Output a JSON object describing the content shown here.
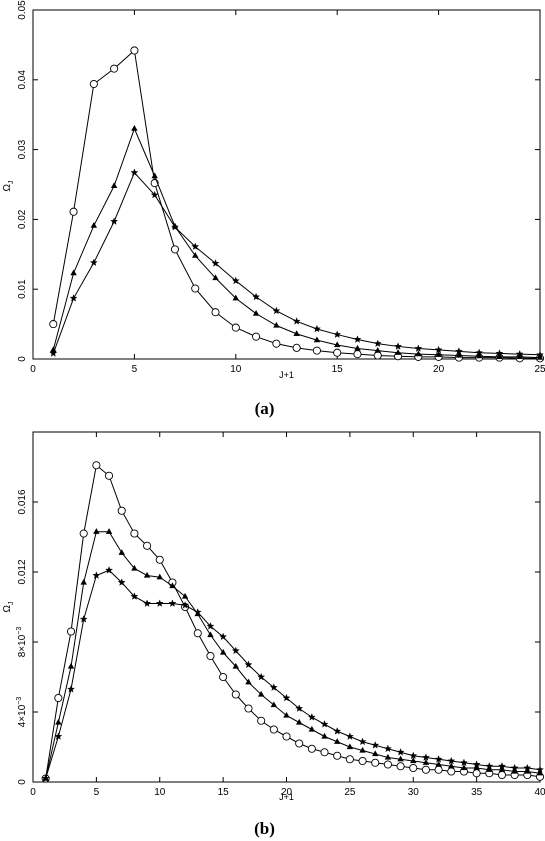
{
  "chart_data": [
    {
      "type": "line",
      "panel_label": "(a)",
      "xlabel": "J+1",
      "ylabel": "Ω",
      "ylabel_sub": "J",
      "xlim": [
        0,
        25
      ],
      "ylim": [
        0,
        0.05
      ],
      "xticks": [
        0,
        5,
        10,
        15,
        20,
        25
      ],
      "xtick_labels": [
        "0",
        "5",
        "10",
        "15",
        "20",
        "25"
      ],
      "yticks": [
        0,
        0.01,
        0.02,
        0.03,
        0.04,
        0.05
      ],
      "ytick_labels": [
        "0",
        "0.01",
        "0.02",
        "0.03",
        "0.04",
        "0.05"
      ],
      "grid": false,
      "series": [
        {
          "marker": "circle",
          "x": [
            1,
            2,
            3,
            4,
            5,
            6,
            7,
            8,
            9,
            10,
            11,
            12,
            13,
            14,
            15,
            16,
            17,
            18,
            19,
            20,
            21,
            22,
            23,
            24,
            25
          ],
          "values": [
            0.005,
            0.0211,
            0.0394,
            0.0416,
            0.0442,
            0.0252,
            0.0157,
            0.0101,
            0.0067,
            0.0045,
            0.0032,
            0.0022,
            0.0016,
            0.0012,
            0.0009,
            0.0007,
            0.0005,
            0.0004,
            0.0003,
            0.0003,
            0.0002,
            0.0002,
            0.0002,
            0.0001,
            0.0001
          ]
        },
        {
          "marker": "triangle",
          "x": [
            1,
            2,
            3,
            4,
            5,
            6,
            7,
            8,
            9,
            10,
            11,
            12,
            13,
            14,
            15,
            16,
            17,
            18,
            19,
            20,
            21,
            22,
            23,
            24,
            25
          ],
          "values": [
            0.0013,
            0.0123,
            0.0191,
            0.0248,
            0.033,
            0.0262,
            0.019,
            0.0148,
            0.0116,
            0.0087,
            0.0065,
            0.0048,
            0.0036,
            0.0027,
            0.002,
            0.0015,
            0.0012,
            0.0009,
            0.0007,
            0.0006,
            0.0005,
            0.0004,
            0.0003,
            0.0003,
            0.0002
          ]
        },
        {
          "marker": "star",
          "x": [
            1,
            2,
            3,
            4,
            5,
            6,
            7,
            8,
            9,
            10,
            11,
            12,
            13,
            14,
            15,
            16,
            17,
            18,
            19,
            20,
            21,
            22,
            23,
            24,
            25
          ],
          "values": [
            0.0008,
            0.0087,
            0.0138,
            0.0197,
            0.0267,
            0.0235,
            0.0189,
            0.0161,
            0.0137,
            0.0112,
            0.0089,
            0.0069,
            0.0054,
            0.0043,
            0.0035,
            0.0028,
            0.0022,
            0.0018,
            0.0015,
            0.0013,
            0.0011,
            0.0009,
            0.0008,
            0.0007,
            0.0006
          ]
        }
      ]
    },
    {
      "type": "line",
      "panel_label": "(b)",
      "xlabel": "J+1",
      "ylabel": "Ω",
      "ylabel_sub": "J",
      "xlim": [
        0,
        40
      ],
      "ylim": [
        0,
        0.02
      ],
      "xticks": [
        0,
        5,
        10,
        15,
        20,
        25,
        30,
        35,
        40
      ],
      "xtick_labels": [
        "0",
        "5",
        "10",
        "15",
        "20",
        "25",
        "30",
        "35",
        "40"
      ],
      "yticks": [
        0,
        0.004,
        0.008,
        0.012,
        0.016
      ],
      "ytick_labels": [
        "0",
        "4×10",
        "8×10",
        "0.012",
        "0.016"
      ],
      "ytick_exponents": [
        "",
        "−3",
        "−3",
        "",
        ""
      ],
      "grid": false,
      "series": [
        {
          "marker": "circle",
          "x": [
            1,
            2,
            3,
            4,
            5,
            6,
            7,
            8,
            9,
            10,
            11,
            12,
            13,
            14,
            15,
            16,
            17,
            18,
            19,
            20,
            21,
            22,
            23,
            24,
            25,
            26,
            27,
            28,
            29,
            30,
            31,
            32,
            33,
            34,
            35,
            36,
            37,
            38,
            39,
            40
          ],
          "values": [
            0.0002,
            0.0048,
            0.0086,
            0.0142,
            0.0181,
            0.0175,
            0.0155,
            0.0142,
            0.0135,
            0.0127,
            0.0114,
            0.01,
            0.0085,
            0.0072,
            0.006,
            0.005,
            0.0042,
            0.0035,
            0.003,
            0.0026,
            0.0022,
            0.0019,
            0.0017,
            0.0015,
            0.0013,
            0.0012,
            0.0011,
            0.001,
            0.0009,
            0.0008,
            0.0007,
            0.0007,
            0.0006,
            0.0006,
            0.0005,
            0.0005,
            0.0004,
            0.0004,
            0.0004,
            0.0003
          ]
        },
        {
          "marker": "triangle",
          "x": [
            1,
            2,
            3,
            4,
            5,
            6,
            7,
            8,
            9,
            10,
            11,
            12,
            13,
            14,
            15,
            16,
            17,
            18,
            19,
            20,
            21,
            22,
            23,
            24,
            25,
            26,
            27,
            28,
            29,
            30,
            31,
            32,
            33,
            34,
            35,
            36,
            37,
            38,
            39,
            40
          ],
          "values": [
            0.0002,
            0.0034,
            0.0066,
            0.0114,
            0.0143,
            0.0143,
            0.0131,
            0.0122,
            0.0118,
            0.0117,
            0.0112,
            0.0106,
            0.0096,
            0.0084,
            0.0074,
            0.0066,
            0.0057,
            0.005,
            0.0044,
            0.0038,
            0.0034,
            0.003,
            0.0026,
            0.0023,
            0.002,
            0.0018,
            0.0016,
            0.0014,
            0.0013,
            0.0012,
            0.0011,
            0.001,
            0.0009,
            0.0008,
            0.0008,
            0.0007,
            0.0007,
            0.0006,
            0.0006,
            0.0005
          ]
        },
        {
          "marker": "star",
          "x": [
            1,
            2,
            3,
            4,
            5,
            6,
            7,
            8,
            9,
            10,
            11,
            12,
            13,
            14,
            15,
            16,
            17,
            18,
            19,
            20,
            21,
            22,
            23,
            24,
            25,
            26,
            27,
            28,
            29,
            30,
            31,
            32,
            33,
            34,
            35,
            36,
            37,
            38,
            39,
            40
          ],
          "values": [
            0.0002,
            0.0026,
            0.0053,
            0.0093,
            0.0118,
            0.0121,
            0.0114,
            0.0106,
            0.0102,
            0.0102,
            0.0102,
            0.0101,
            0.0097,
            0.0089,
            0.0083,
            0.0075,
            0.0067,
            0.006,
            0.0054,
            0.0048,
            0.0042,
            0.0037,
            0.0033,
            0.0029,
            0.0026,
            0.0023,
            0.0021,
            0.0019,
            0.0017,
            0.0015,
            0.0014,
            0.0013,
            0.0012,
            0.0011,
            0.001,
            0.0009,
            0.0009,
            0.0008,
            0.0008,
            0.0007
          ]
        }
      ]
    }
  ]
}
